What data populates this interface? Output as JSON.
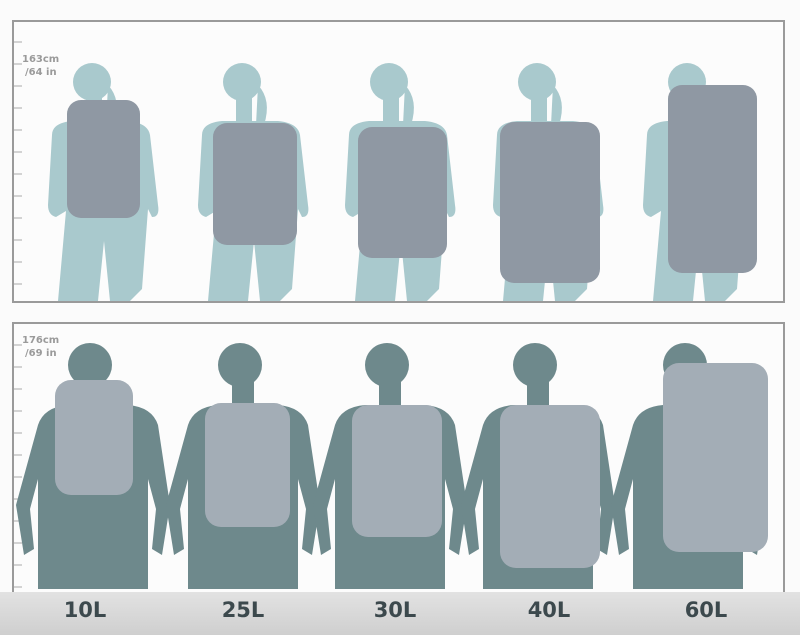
{
  "rows": [
    {
      "height_label_1": "163cm",
      "height_label_2": "/64 in",
      "figure": "female",
      "figure_color": "#a9c9cd",
      "pack_color": "#8f98a3"
    },
    {
      "height_label_1": "176cm",
      "height_label_2": "/69 in",
      "figure": "male",
      "figure_color": "#6e898c",
      "pack_color": "#a3adb6"
    }
  ],
  "sizes": [
    "10L",
    "25L",
    "30L",
    "40L",
    "60L"
  ]
}
